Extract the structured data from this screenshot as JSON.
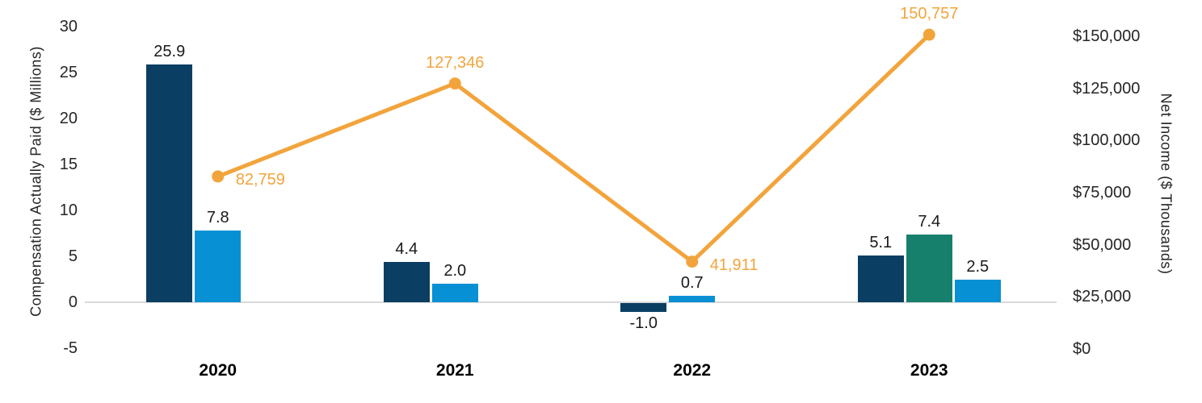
{
  "chart_data": {
    "type": "bar+line",
    "title": "",
    "categories": [
      "2020",
      "2021",
      "2022",
      "2023"
    ],
    "series": [
      {
        "name": "cap-bar-navy",
        "type": "bar",
        "color_key": "navy",
        "values": [
          25.9,
          4.4,
          -1.0,
          5.1
        ],
        "labels": [
          "25.9",
          "4.4",
          "-1.0",
          "5.1"
        ]
      },
      {
        "name": "cap-bar-teal",
        "type": "bar",
        "color_key": "teal",
        "values": [
          null,
          null,
          null,
          7.4
        ],
        "labels": [
          null,
          null,
          null,
          "7.4"
        ]
      },
      {
        "name": "cap-bar-blue",
        "type": "bar",
        "color_key": "blue",
        "values": [
          7.8,
          2.0,
          0.7,
          2.5
        ],
        "labels": [
          "7.8",
          "2.0",
          "0.7",
          "2.5"
        ]
      },
      {
        "name": "net-income-line",
        "type": "line",
        "color_key": "orange",
        "values": [
          82759,
          127346,
          41911,
          150757
        ],
        "labels": [
          "82,759",
          "127,346",
          "41,911",
          "150,757"
        ],
        "label_positions": [
          "right",
          "above",
          "right",
          "above"
        ]
      }
    ],
    "left_axis": {
      "title": "Compensation Actually Paid ($ Millions)",
      "range": [
        -5,
        30
      ],
      "ticks": [
        {
          "value": 30,
          "label": "30"
        },
        {
          "value": 25,
          "label": "25"
        },
        {
          "value": 20,
          "label": "20"
        },
        {
          "value": 15,
          "label": "15"
        },
        {
          "value": 10,
          "label": "10"
        },
        {
          "value": 5,
          "label": "5"
        },
        {
          "value": 0,
          "label": "0"
        },
        {
          "value": -5,
          "label": "-5"
        }
      ]
    },
    "right_axis": {
      "title": "Net Income ($ Thousands)",
      "range": [
        0,
        150000
      ],
      "ticks": [
        {
          "value": 150000,
          "label": "$150,000"
        },
        {
          "value": 125000,
          "label": "$125,000"
        },
        {
          "value": 100000,
          "label": "$100,000"
        },
        {
          "value": 75000,
          "label": "$75,000"
        },
        {
          "value": 50000,
          "label": "$50,000"
        },
        {
          "value": 25000,
          "label": "$25,000"
        },
        {
          "value": 0,
          "label": "$0"
        }
      ]
    },
    "legend": "none",
    "grid": "off",
    "colors": {
      "navy": "#0b3e63",
      "teal": "#17806d",
      "blue": "#0790d3",
      "orange": "#f2a43c",
      "axis_line": "#d9d9d9"
    }
  }
}
